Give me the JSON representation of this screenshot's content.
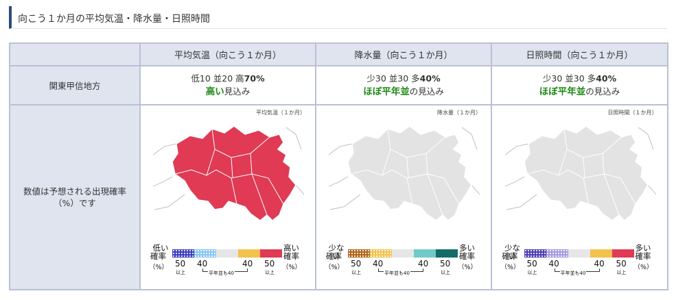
{
  "title": "向こう１か月の平均気温・降水量・日照時間",
  "columns": [
    "平均気温（向こう１か月）",
    "降水量（向こう１か月）",
    "日照時間（向こう１か月）"
  ],
  "region": "関東甲信地方",
  "forecast": {
    "temp": {
      "prefix": "低10 並20 高",
      "value": "70%",
      "outlook_em": "高い",
      "outlook_rest": "見込み"
    },
    "precip": {
      "prefix": "少30 並30 多",
      "value": "40%",
      "outlook_em": "ほぼ平年並",
      "outlook_rest": "の見込み"
    },
    "sun": {
      "prefix": "少30 並30 多",
      "value": "40%",
      "outlook_em": "ほぼ平年並",
      "outlook_rest": "の見込み"
    }
  },
  "map_row_label": "数値は予想される出現確率（%）です",
  "maps": {
    "temp": {
      "tag": "平均気温（１か月）",
      "fill": "#e03a55"
    },
    "precip": {
      "tag": "降水量（１か月）",
      "fill": "#e3e3e3"
    },
    "sun": {
      "tag": "日照時間（１か月）",
      "fill": "#e3e3e3"
    }
  },
  "legends": {
    "temp": {
      "left": "低い",
      "right": "高い",
      "colors": [
        "#3a3fbf",
        "#86c8f2",
        "#e6e6e6",
        "#f2c24b",
        "#e03a55"
      ]
    },
    "precip": {
      "left": "少ない",
      "right": "多い",
      "colors": [
        "#b0651c",
        "#f2c24b",
        "#e6e6e6",
        "#70cbc6",
        "#146c68"
      ]
    },
    "sun": {
      "left": "少ない",
      "right": "多い",
      "colors": [
        "#4a3fb5",
        "#a79ae0",
        "#e6e6e6",
        "#f2c24b",
        "#e03a55"
      ]
    },
    "common": {
      "rate": "確率",
      "pct": "（%）",
      "n50": "50",
      "n40": "40",
      "ijou": "以上",
      "flat": "平年並も40"
    }
  }
}
